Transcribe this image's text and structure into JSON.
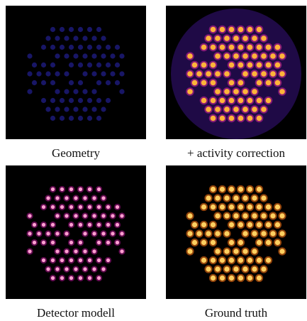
{
  "panels": [
    {
      "caption": "Geometry"
    },
    {
      "caption": "+ activity correction"
    },
    {
      "caption": "Detector modell"
    },
    {
      "caption": "Ground truth"
    }
  ]
}
